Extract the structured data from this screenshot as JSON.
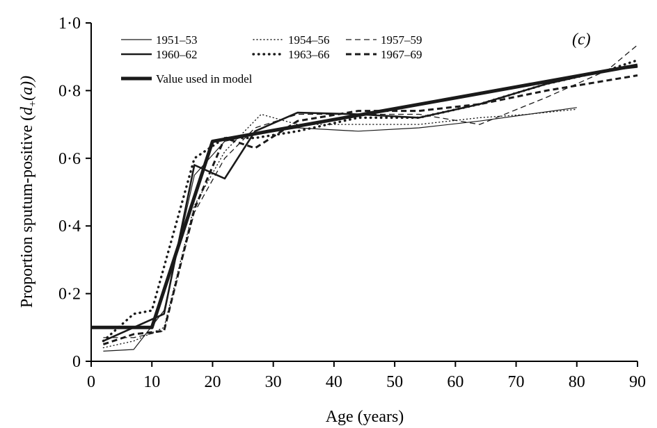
{
  "chart_data": {
    "type": "line",
    "panel_label": "(c)",
    "xlabel": "Age (years)",
    "ylabel_prefix": "Proportion sputum-positive (",
    "ylabel_d": "d",
    "ylabel_sub": "+",
    "ylabel_suffix": "(a))",
    "xlim": [
      0,
      90
    ],
    "ylim": [
      0,
      1.0
    ],
    "x_ticks": [
      "0",
      "10",
      "20",
      "30",
      "40",
      "50",
      "60",
      "70",
      "80",
      "90"
    ],
    "y_ticks": [
      "0",
      "0·2",
      "0·4",
      "0·6",
      "0·8",
      "1·0"
    ],
    "grid": false,
    "legend_position": "top-left",
    "series": [
      {
        "name": "1951–53",
        "style": "thin-solid",
        "points": [
          [
            2,
            0.03
          ],
          [
            7,
            0.035
          ],
          [
            12,
            0.15
          ],
          [
            17,
            0.55
          ],
          [
            22,
            0.65
          ],
          [
            27,
            0.67
          ],
          [
            34,
            0.69
          ],
          [
            44,
            0.68
          ],
          [
            54,
            0.69
          ],
          [
            64,
            0.71
          ],
          [
            72,
            0.73
          ],
          [
            80,
            0.75
          ]
        ]
      },
      {
        "name": "1954–56",
        "style": "thin-dotted",
        "points": [
          [
            2,
            0.04
          ],
          [
            7,
            0.06
          ],
          [
            12,
            0.1
          ],
          [
            17,
            0.46
          ],
          [
            22,
            0.62
          ],
          [
            28,
            0.73
          ],
          [
            34,
            0.7
          ],
          [
            44,
            0.7
          ],
          [
            54,
            0.7
          ],
          [
            64,
            0.72
          ],
          [
            72,
            0.73
          ],
          [
            80,
            0.745
          ]
        ]
      },
      {
        "name": "1957–59",
        "style": "thin-dashed",
        "points": [
          [
            2,
            0.07
          ],
          [
            7,
            0.07
          ],
          [
            12,
            0.09
          ],
          [
            17,
            0.44
          ],
          [
            22,
            0.6
          ],
          [
            27,
            0.69
          ],
          [
            34,
            0.73
          ],
          [
            44,
            0.73
          ],
          [
            54,
            0.73
          ],
          [
            64,
            0.7
          ],
          [
            75,
            0.78
          ],
          [
            85,
            0.86
          ],
          [
            90,
            0.935
          ]
        ]
      },
      {
        "name": "1960–62",
        "style": "medium-solid",
        "points": [
          [
            2,
            0.06
          ],
          [
            7,
            0.1
          ],
          [
            12,
            0.14
          ],
          [
            17,
            0.58
          ],
          [
            22,
            0.54
          ],
          [
            27,
            0.68
          ],
          [
            34,
            0.735
          ],
          [
            44,
            0.73
          ],
          [
            54,
            0.72
          ],
          [
            64,
            0.76
          ],
          [
            75,
            0.82
          ],
          [
            85,
            0.86
          ],
          [
            90,
            0.87
          ]
        ]
      },
      {
        "name": "1963–66",
        "style": "thick-dotted",
        "points": [
          [
            2,
            0.06
          ],
          [
            7,
            0.14
          ],
          [
            10,
            0.15
          ],
          [
            17,
            0.6
          ],
          [
            22,
            0.66
          ],
          [
            27,
            0.66
          ],
          [
            34,
            0.68
          ],
          [
            44,
            0.72
          ],
          [
            54,
            0.72
          ],
          [
            64,
            0.76
          ],
          [
            75,
            0.82
          ],
          [
            85,
            0.86
          ],
          [
            90,
            0.89
          ]
        ]
      },
      {
        "name": "1967–69",
        "style": "thick-dashed",
        "points": [
          [
            2,
            0.05
          ],
          [
            7,
            0.08
          ],
          [
            12,
            0.09
          ],
          [
            17,
            0.45
          ],
          [
            22,
            0.66
          ],
          [
            27,
            0.63
          ],
          [
            34,
            0.71
          ],
          [
            44,
            0.74
          ],
          [
            54,
            0.74
          ],
          [
            64,
            0.76
          ],
          [
            75,
            0.8
          ],
          [
            85,
            0.83
          ],
          [
            90,
            0.845
          ]
        ]
      },
      {
        "name": "Value used in model",
        "style": "bold-solid",
        "points": [
          [
            0,
            0.1
          ],
          [
            10,
            0.1
          ],
          [
            20,
            0.65
          ],
          [
            90,
            0.875
          ]
        ]
      }
    ]
  }
}
